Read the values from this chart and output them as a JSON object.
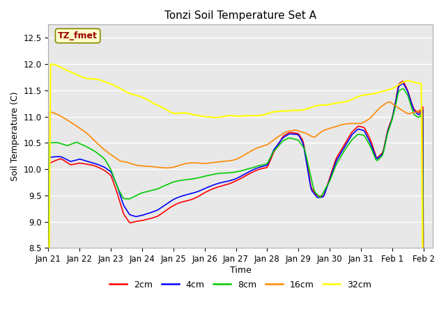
{
  "title": "Tonzi Soil Temperature Set A",
  "xlabel": "Time",
  "ylabel": "Soil Temperature (C)",
  "ylim": [
    8.5,
    12.75
  ],
  "xlim_days": [
    0,
    12.3
  ],
  "background_color": "#e8e8e8",
  "grid_color": "white",
  "series": {
    "2cm": {
      "color": "#ff0000",
      "lw": 1.2
    },
    "4cm": {
      "color": "#0000ff",
      "lw": 1.2
    },
    "8cm": {
      "color": "#00cc00",
      "lw": 1.2
    },
    "16cm": {
      "color": "#ff8800",
      "lw": 1.2
    },
    "32cm": {
      "color": "#ffff00",
      "lw": 1.5
    }
  },
  "annotation_text": "TZ_fmet",
  "annotation_color": "#990000",
  "annotation_bg": "#ffffcc",
  "tick_labels": [
    "Jan 21",
    "Jan 22",
    "Jan 23",
    "Jan 24",
    "Jan 25",
    "Jan 26",
    "Jan 27",
    "Jan 28",
    "Jan 29",
    "Jan 30",
    "Jan 31",
    "Feb 1",
    "Feb 2"
  ],
  "tick_positions": [
    0,
    1,
    2,
    3,
    4,
    5,
    6,
    7,
    8,
    9,
    10,
    11,
    12
  ]
}
